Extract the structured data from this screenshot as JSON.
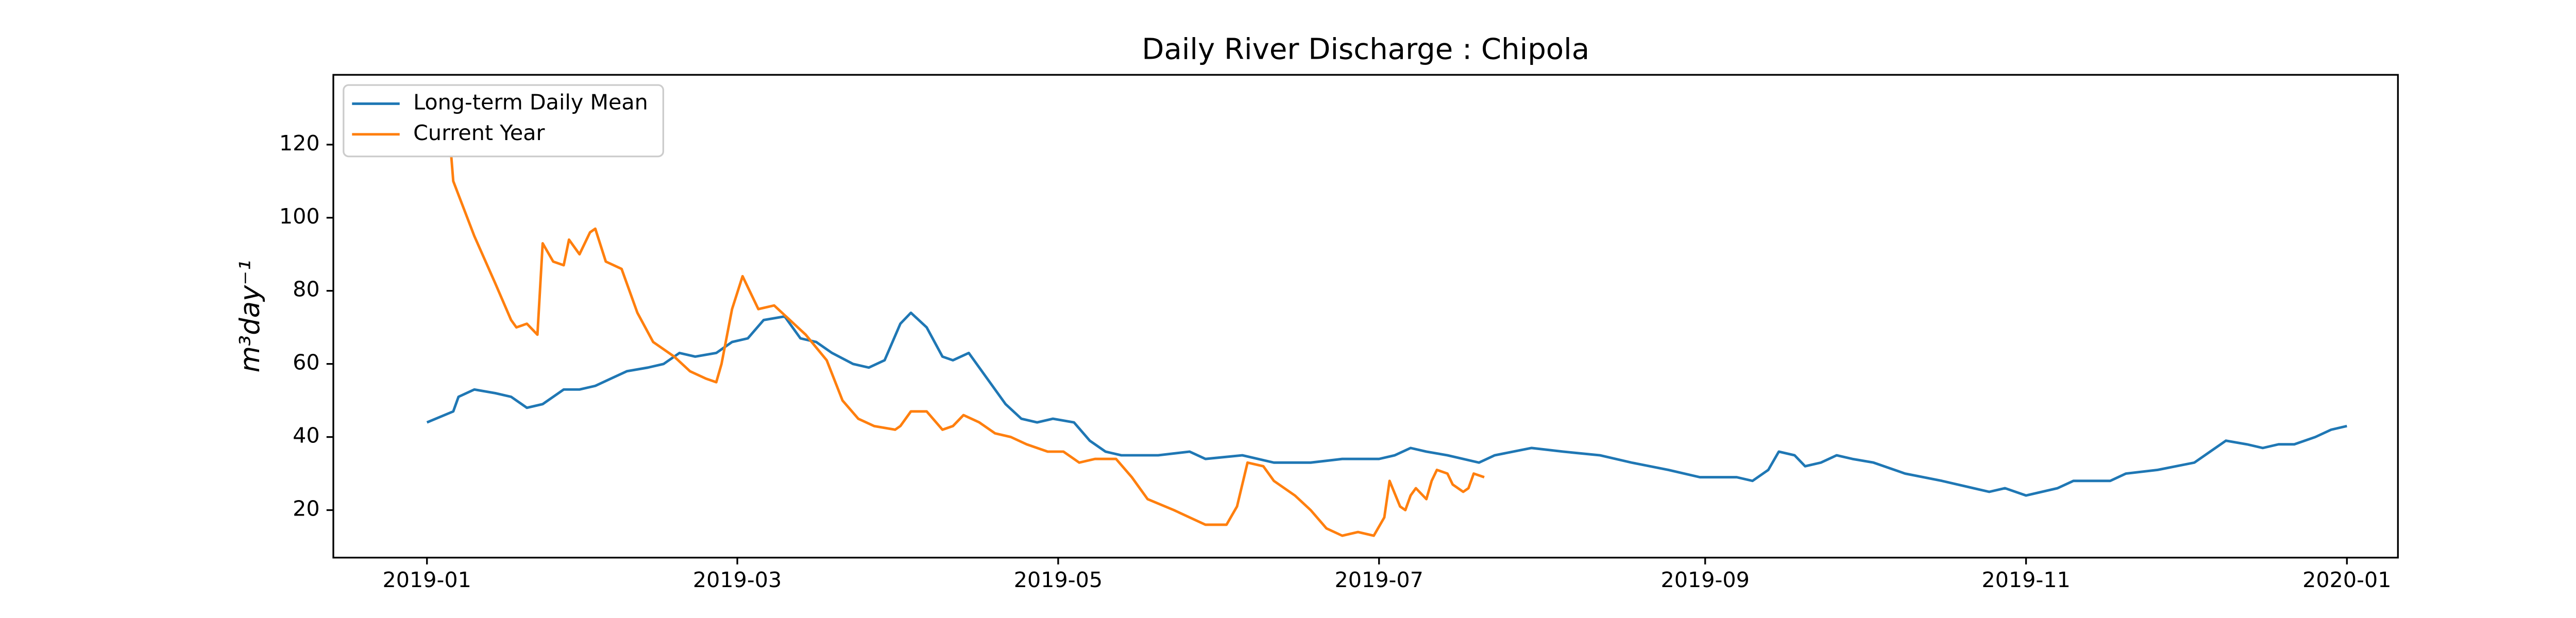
{
  "chart_data": {
    "type": "line",
    "title": "Daily River Discharge : Chipola",
    "ylabel": "m³day⁻¹",
    "xlim": [
      -17.8,
      374.7
    ],
    "xticks": [
      {
        "value": 0,
        "label": "2019-01"
      },
      {
        "value": 59,
        "label": "2019-03"
      },
      {
        "value": 120,
        "label": "2019-05"
      },
      {
        "value": 181,
        "label": "2019-07"
      },
      {
        "value": 243,
        "label": "2019-09"
      },
      {
        "value": 304,
        "label": "2019-11"
      },
      {
        "value": 365,
        "label": "2020-01"
      }
    ],
    "ylim": [
      7,
      139.1
    ],
    "yticks": [
      20,
      40,
      60,
      80,
      100,
      120
    ],
    "grid": false,
    "legend": "upper left",
    "series": [
      {
        "name": "Long-term Daily Mean",
        "color": "#1f77b4",
        "x": [
          0,
          5,
          6,
          9,
          13,
          16,
          19,
          22,
          26,
          29,
          32,
          35,
          38,
          42,
          45,
          48,
          51,
          55,
          58,
          61,
          64,
          68,
          71,
          74,
          77,
          81,
          84,
          87,
          90,
          92,
          95,
          98,
          100,
          103,
          106,
          110,
          113,
          116,
          119,
          123,
          126,
          129,
          132,
          139,
          145,
          148,
          155,
          161,
          168,
          174,
          181,
          184,
          187,
          190,
          194,
          200,
          203,
          210,
          216,
          223,
          229,
          236,
          242,
          249,
          252,
          255,
          257,
          260,
          262,
          265,
          268,
          271,
          275,
          281,
          288,
          294,
          297,
          300,
          304,
          310,
          313,
          320,
          323,
          329,
          336,
          339,
          342,
          346,
          349,
          352,
          355,
          359,
          362,
          365
        ],
        "values": [
          44,
          47,
          51,
          53,
          52,
          51,
          48,
          49,
          53,
          53,
          54,
          56,
          58,
          59,
          60,
          63,
          62,
          63,
          66,
          67,
          72,
          73,
          67,
          66,
          63,
          60,
          59,
          61,
          71,
          74,
          70,
          62,
          61,
          63,
          57,
          49,
          45,
          44,
          45,
          44,
          39,
          36,
          35,
          35,
          36,
          34,
          35,
          33,
          33,
          34,
          34,
          35,
          37,
          36,
          35,
          33,
          35,
          37,
          36,
          35,
          33,
          31,
          29,
          29,
          28,
          31,
          36,
          35,
          32,
          33,
          35,
          34,
          33,
          30,
          28,
          26,
          25,
          26,
          24,
          26,
          28,
          28,
          30,
          31,
          33,
          36,
          39,
          38,
          37,
          38,
          38,
          40,
          42,
          43
        ]
      },
      {
        "name": "Current Year",
        "color": "#ff7f0e",
        "x": [
          0,
          2,
          4,
          5,
          9,
          13,
          16,
          17,
          19,
          21,
          22,
          24,
          26,
          27,
          29,
          31,
          32,
          34,
          37,
          40,
          43,
          47,
          50,
          53,
          55,
          56,
          58,
          60,
          63,
          66,
          69,
          72,
          76,
          79,
          82,
          85,
          89,
          90,
          92,
          95,
          98,
          100,
          102,
          105,
          108,
          111,
          114,
          118,
          121,
          124,
          127,
          131,
          134,
          137,
          142,
          145,
          148,
          152,
          154,
          156,
          159,
          161,
          165,
          168,
          171,
          174,
          177,
          180,
          182,
          183,
          185,
          186,
          187,
          188,
          190,
          191,
          192,
          194,
          195,
          197,
          198,
          199,
          201
        ],
        "values": [
          125,
          133,
          128,
          110,
          95,
          82,
          72,
          70,
          71,
          68,
          93,
          88,
          87,
          94,
          90,
          96,
          97,
          88,
          86,
          74,
          66,
          62,
          58,
          56,
          55,
          60,
          75,
          84,
          75,
          76,
          72,
          68,
          61,
          50,
          45,
          43,
          42,
          43,
          47,
          47,
          42,
          43,
          46,
          44,
          41,
          40,
          38,
          36,
          36,
          33,
          34,
          34,
          29,
          23,
          20,
          18,
          16,
          16,
          21,
          33,
          32,
          28,
          24,
          20,
          15,
          13,
          14,
          13,
          18,
          28,
          21,
          20,
          24,
          26,
          23,
          28,
          31,
          30,
          27,
          25,
          26,
          30,
          29
        ]
      }
    ]
  }
}
